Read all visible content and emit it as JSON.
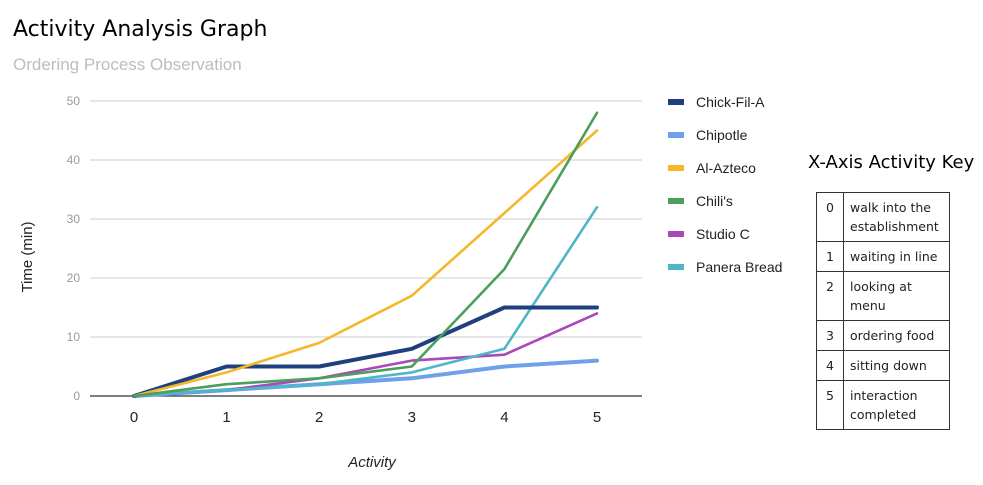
{
  "chart_data": {
    "type": "line",
    "title": "Activity Analysis Graph",
    "subtitle": "Ordering Process Observation",
    "xlabel": "Activity",
    "ylabel": "Time (min)",
    "x": [
      0,
      1,
      2,
      3,
      4,
      5
    ],
    "xlim": [
      0,
      5
    ],
    "ylim": [
      0,
      50
    ],
    "yticks": [
      0,
      10,
      20,
      30,
      40,
      50
    ],
    "grid": true,
    "legend_position": "right",
    "series": [
      {
        "name": "Chick-Fil-A",
        "color": "#1f3f7f",
        "values": [
          0,
          5,
          5,
          8,
          15,
          15
        ]
      },
      {
        "name": "Chipotle",
        "color": "#6fa0e8",
        "values": [
          0,
          1,
          2,
          3,
          5,
          6
        ]
      },
      {
        "name": "Al-Azteco",
        "color": "#f4b829",
        "values": [
          0,
          4,
          9,
          17,
          31,
          45
        ]
      },
      {
        "name": "Chili's",
        "color": "#4c9e5a",
        "values": [
          0,
          2,
          3,
          5,
          21.5,
          48
        ]
      },
      {
        "name": "Studio C",
        "color": "#ab47bc",
        "values": [
          0,
          1,
          3,
          6,
          7,
          14
        ]
      },
      {
        "name": "Panera Bread",
        "color": "#4db6c9",
        "values": [
          0,
          1,
          2,
          4,
          8,
          32
        ]
      }
    ]
  },
  "activity_key": {
    "title": "X-Axis Activity Key",
    "rows": [
      {
        "num": "0",
        "label": "walk into the establishment"
      },
      {
        "num": "1",
        "label": "waiting in line"
      },
      {
        "num": "2",
        "label": "looking at menu"
      },
      {
        "num": "3",
        "label": "ordering food"
      },
      {
        "num": "4",
        "label": "sitting down"
      },
      {
        "num": "5",
        "label": "interaction completed"
      }
    ]
  }
}
